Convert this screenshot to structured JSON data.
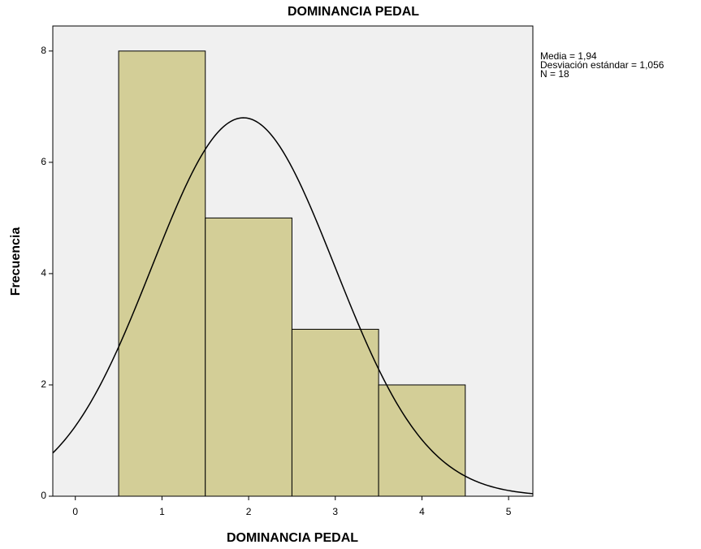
{
  "chart_data": {
    "type": "histogram",
    "title": "DOMINANCIA PEDAL",
    "xlabel": "DOMINANCIA PEDAL",
    "ylabel": "Frecuencia",
    "bins": [
      0.5,
      1.5,
      2.5,
      3.5,
      4.5
    ],
    "values": [
      8,
      5,
      3,
      2
    ],
    "color": "#d3ce97",
    "xlim": [
      -0.26,
      5.28
    ],
    "xticks": [
      0,
      1,
      2,
      3,
      4,
      5
    ],
    "ylim": [
      0,
      8.45
    ],
    "yticks": [
      0,
      2,
      4,
      6,
      8
    ],
    "stats": [
      {
        "value": 1.94,
        "label": "Media = 1,94"
      },
      {
        "value": 1.056,
        "label": "Desviación estándar = 1,056"
      },
      {
        "value": 18,
        "label": "N = 18"
      }
    ]
  }
}
